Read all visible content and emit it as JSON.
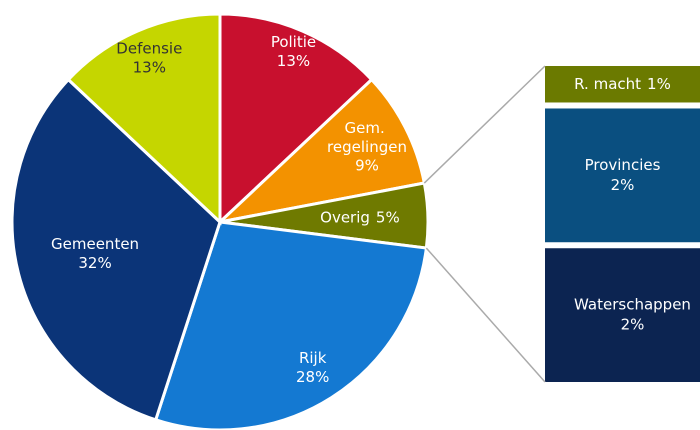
{
  "chart_data": {
    "type": "pie",
    "categories": [
      "Politie",
      "Gem. regelingen",
      "Overig",
      "Rijk",
      "Gemeenten",
      "Defensie"
    ],
    "values": [
      13,
      9,
      5,
      28,
      32,
      13
    ],
    "value_labels": [
      "13%",
      "9%",
      "5%",
      "28%",
      "32%",
      "13%"
    ],
    "colors": [
      "#c8102e",
      "#f39200",
      "#6f7a00",
      "#1479d2",
      "#0b3478",
      "#c5d600"
    ],
    "bar": {
      "categories": [
        "R. macht",
        "Provincies",
        "Waterschappen"
      ],
      "values": [
        0.6,
        2.2,
        2.2
      ],
      "value_labels": [
        "1%",
        "2%",
        "2%"
      ],
      "colors": [
        "#6b7a00",
        "#0a4f80",
        "#0c2451"
      ]
    }
  }
}
